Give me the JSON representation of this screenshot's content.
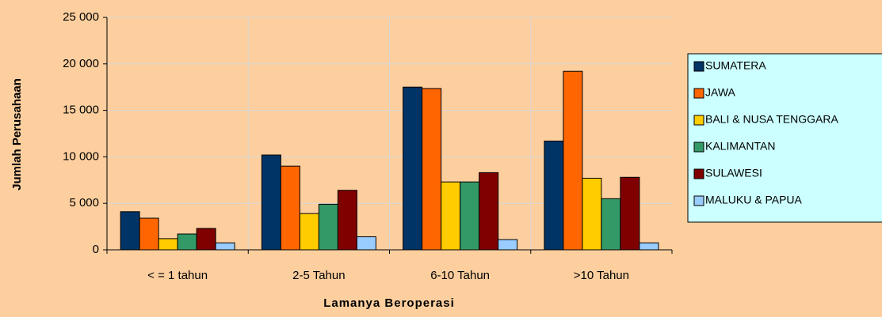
{
  "chart_data": {
    "type": "bar",
    "x_label": "Lamanya Beroperasi",
    "y_label": "Jumlah Perusahaan",
    "categories": [
      "< = 1 tahun",
      "2-5 Tahun",
      "6-10 Tahun",
      ">10 Tahun"
    ],
    "series": [
      {
        "name": "SUMATERA",
        "color": "#003366",
        "values": [
          4100,
          10200,
          17500,
          11700
        ]
      },
      {
        "name": "JAWA",
        "color": "#FF6600",
        "values": [
          3400,
          9000,
          17350,
          19200
        ]
      },
      {
        "name": "BALI & NUSA TENGGARA",
        "color": "#FFCC00",
        "values": [
          1200,
          3900,
          7300,
          7700
        ]
      },
      {
        "name": "KALIMANTAN",
        "color": "#339966",
        "values": [
          1700,
          4900,
          7300,
          5500
        ]
      },
      {
        "name": "SULAWESI",
        "color": "#800000",
        "values": [
          2300,
          6400,
          8300,
          7800
        ]
      },
      {
        "name": "MALUKU & PAPUA",
        "color": "#99CCFF",
        "values": [
          750,
          1400,
          1100,
          750
        ]
      }
    ],
    "ylim": [
      0,
      25000
    ],
    "yticks": [
      0,
      {
        "value": 5000,
        "label": "5 000"
      },
      {
        "value": 10000,
        "label": "10 000"
      },
      {
        "value": 15000,
        "label": "15 000"
      },
      {
        "value": 20000,
        "label": "20 000"
      },
      {
        "value": 25000,
        "label": "25 000"
      }
    ],
    "grid": true,
    "legend": "right"
  }
}
